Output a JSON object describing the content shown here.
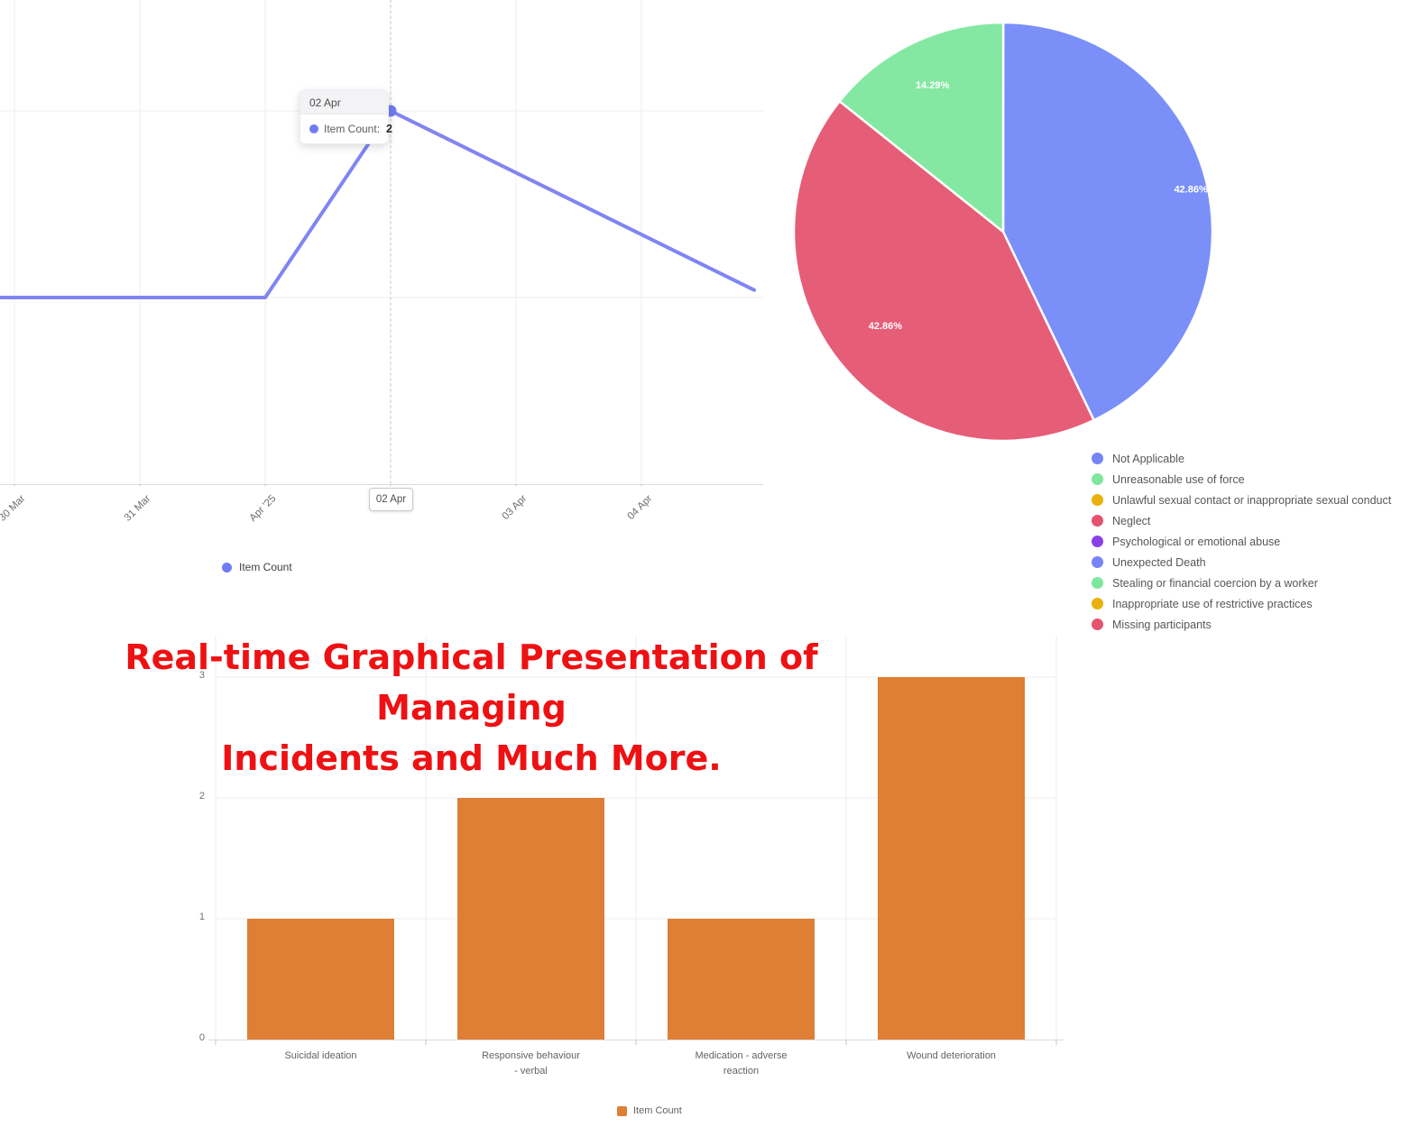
{
  "title": {
    "line1": "Real-time Graphical Presentation of Managing",
    "line2": "Incidents and Much More.",
    "color": "#ee1113"
  },
  "palette": {
    "blue": "#7584f6",
    "green": "#7de79c",
    "yellow": "#e9b10d",
    "red": "#e5536f",
    "purple": "#8a42e8",
    "orange": "#de7f35",
    "line": "#8185f2",
    "grid": "#ededf0",
    "axis": "#dcdcdf"
  },
  "line_chart": {
    "legend_label": "Item Count",
    "tooltip": {
      "title": "02 Apr",
      "series_label": "Item Count:",
      "value": "2"
    },
    "axis_pointer_label": "02 Apr"
  },
  "bar_chart": {
    "legend_label": "Item Count"
  },
  "chart_data": [
    {
      "id": "incident-trend-line",
      "type": "line",
      "x": [
        "30 Mar",
        "31 Mar",
        "Apr '25",
        "02 Apr",
        "03 Apr",
        "04 Apr"
      ],
      "values": [
        1,
        1,
        1,
        2,
        null,
        null
      ],
      "cropped_tail_end_value": 1.04,
      "highlighted_point": {
        "x": "02 Apr",
        "value": 2
      },
      "series": [
        {
          "name": "Item Count",
          "color": "#8185f2"
        }
      ],
      "ylim": [
        0,
        2.6
      ],
      "grid": true,
      "legend_position": "bottom",
      "note": "chart is cropped left/right; line continues declining past 04 Apr"
    },
    {
      "id": "incident-type-pie",
      "type": "pie",
      "slices": [
        {
          "label": "Not Applicable",
          "pct": 42.86,
          "display": "42.86%",
          "color": "#7b8ff9"
        },
        {
          "label": "Neglect",
          "pct": 42.86,
          "display": "42.86%",
          "color": "#e65d78"
        },
        {
          "label": "Stealing or financial coercion by a worker",
          "pct": 14.29,
          "display": "14.29%",
          "color": "#85e8a2"
        }
      ],
      "legend": [
        {
          "label": "Not Applicable",
          "color": "#7584f6"
        },
        {
          "label": "Unreasonable use of force",
          "color": "#7de79c"
        },
        {
          "label": "Unlawful sexual contact or inappropriate sexual conduct",
          "color": "#e9b10d"
        },
        {
          "label": "Neglect",
          "color": "#e5536f"
        },
        {
          "label": "Psychological or emotional abuse",
          "color": "#8a42e8"
        },
        {
          "label": "Unexpected Death",
          "color": "#7584f6"
        },
        {
          "label": "Stealing or financial coercion by a worker",
          "color": "#7de79c"
        },
        {
          "label": "Inappropriate use of restrictive practices",
          "color": "#e9b10d"
        },
        {
          "label": "Missing participants",
          "color": "#e5536f"
        }
      ],
      "legend_position": "bottom-right"
    },
    {
      "id": "incident-category-bar",
      "type": "bar",
      "categories": [
        "Suicidal ideation",
        "Responsive behaviour - verbal",
        "Medication - adverse reaction",
        "Wound deterioration"
      ],
      "category_lines": [
        [
          "Suicidal ideation"
        ],
        [
          "Responsive behaviour",
          "- verbal"
        ],
        [
          "Medication - adverse",
          "reaction"
        ],
        [
          "Wound deterioration"
        ]
      ],
      "values": [
        1,
        2,
        1,
        3
      ],
      "series_name": "Item Count",
      "color": "#de7f35",
      "y_ticks": [
        0,
        1,
        2,
        3
      ],
      "ylim": [
        0,
        3.35
      ],
      "xlabel": "",
      "ylabel": "",
      "grid": true,
      "legend_position": "bottom"
    }
  ]
}
